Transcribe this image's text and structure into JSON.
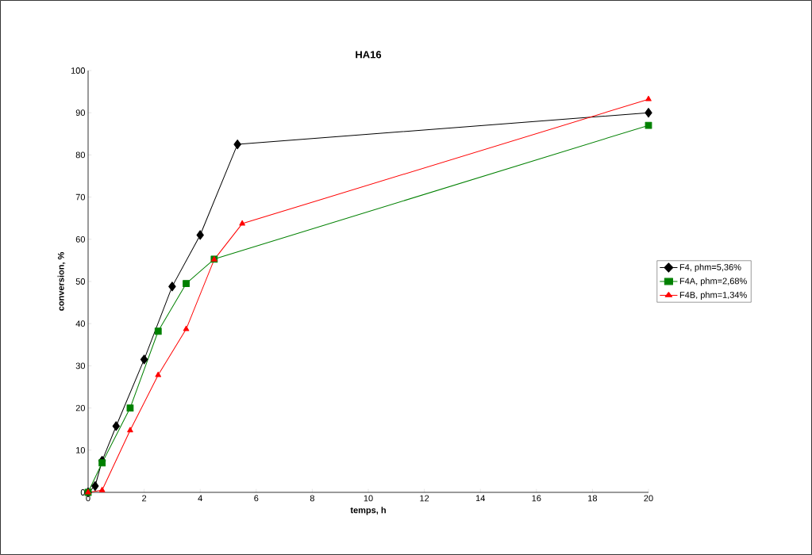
{
  "chart_data": {
    "type": "line",
    "title": "HA16",
    "xlabel": "temps, h",
    "ylabel": "conversion, %",
    "xlim": [
      0,
      20
    ],
    "ylim": [
      0,
      100
    ],
    "xticks": [
      0,
      2,
      4,
      6,
      8,
      10,
      12,
      14,
      16,
      18,
      20
    ],
    "yticks": [
      0,
      10,
      20,
      30,
      40,
      50,
      60,
      70,
      80,
      90,
      100
    ],
    "grid": false,
    "legend": "right",
    "line_style": "solid",
    "series": [
      {
        "name": "F4, phm=5,36%",
        "color": "#000000",
        "marker": "diamond",
        "x": [
          0,
          0.25,
          0.5,
          1,
          2,
          3,
          4,
          5.33,
          20
        ],
        "values": [
          0,
          1.5,
          7.5,
          15.7,
          31.5,
          48.8,
          61,
          82.5,
          90
        ]
      },
      {
        "name": "F4A, phm=2,68%",
        "color": "#008000",
        "marker": "square",
        "x": [
          0,
          0.5,
          1.5,
          2.5,
          3.5,
          4.5,
          20
        ],
        "values": [
          0,
          7,
          20,
          38.2,
          49.5,
          55.3,
          87
        ]
      },
      {
        "name": "F4B, phm=1,34%",
        "color": "#ff0000",
        "marker": "triangle",
        "x": [
          0,
          0.5,
          1.5,
          2.5,
          3.5,
          4.5,
          5.5,
          20
        ],
        "values": [
          0,
          0.5,
          14.7,
          27.8,
          38.7,
          55.2,
          63.7,
          93.2
        ]
      }
    ]
  }
}
